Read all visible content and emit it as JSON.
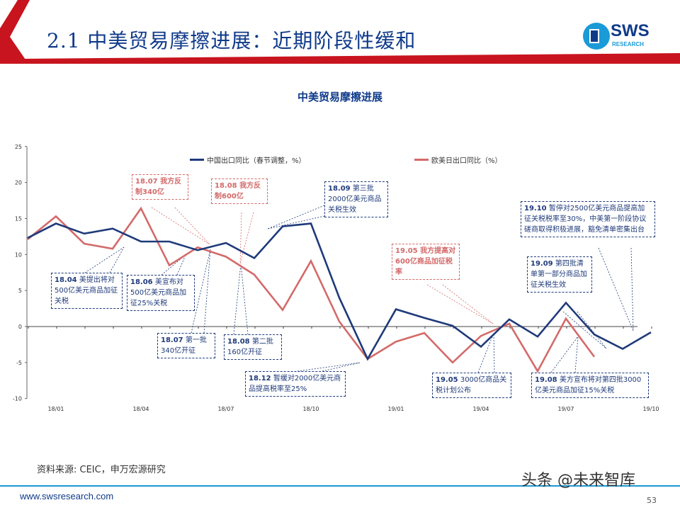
{
  "header": {
    "title": "2.1 中美贸易摩擦进展：近期阶段性缓和",
    "logo_text": "SWS",
    "logo_sub": "RESEARCH"
  },
  "colors": {
    "brand_red": "#c8141e",
    "brand_blue": "#0f3a8a",
    "china_series": "#1f3a7a",
    "west_series": "#d46a6a",
    "footer_line": "#1a9ad6"
  },
  "chart_data": {
    "type": "line",
    "title": "中美贸易摩擦进展",
    "x": [
      "17/12",
      "18/01",
      "18/02",
      "18/03",
      "18/04",
      "18/05",
      "18/06",
      "18/07",
      "18/08",
      "18/09",
      "18/10",
      "18/11",
      "18/12",
      "19/01",
      "19/02",
      "19/03",
      "19/04",
      "19/05",
      "19/06",
      "19/07",
      "19/08",
      "19/09",
      "19/10"
    ],
    "x_tick_labels": [
      "18/01",
      "18/04",
      "18/07",
      "18/10",
      "19/01",
      "19/04",
      "19/07",
      "19/10"
    ],
    "y_tick_labels": [
      "25",
      "20",
      "15",
      "10",
      "5",
      "0",
      "-5",
      "-10"
    ],
    "ylim": [
      -10,
      25
    ],
    "grid": false,
    "legend_position": "top",
    "series": [
      {
        "name": "中国出口同比（春节调整，%）",
        "color": "#1f3a7a",
        "values": [
          12.3,
          14.3,
          12.9,
          13.6,
          11.8,
          11.8,
          10.6,
          11.6,
          9.5,
          13.9,
          14.3,
          4.0,
          -4.5,
          2.4,
          1.2,
          0.1,
          -2.8,
          1.0,
          -1.4,
          3.3,
          -1.1,
          -3.1,
          -0.8
        ]
      },
      {
        "name": "欧美日出口同比（%）",
        "color": "#d46a6a",
        "values": [
          12.1,
          15.3,
          11.5,
          10.8,
          16.4,
          8.5,
          11.0,
          9.7,
          7.2,
          2.3,
          9.1,
          0.7,
          -4.5,
          -2.1,
          -0.9,
          -5.0,
          -1.3,
          0.4,
          -6.2,
          1.1,
          -4.2,
          null,
          null
        ]
      }
    ],
    "annotations": [
      {
        "date": "18.04",
        "text": "美提出将对500亿美元商品加征关税",
        "color": "blue"
      },
      {
        "date": "18.06",
        "text": "美宣布对500亿美元商品加征25%关税",
        "color": "blue"
      },
      {
        "date": "18.07",
        "text": "我方反制340亿",
        "color": "red"
      },
      {
        "date": "18.08",
        "text": "我方反制600亿",
        "color": "red"
      },
      {
        "date": "18.07",
        "text": "第一批340亿开征",
        "color": "blue"
      },
      {
        "date": "18.08",
        "text": "第二批160亿开征",
        "color": "blue"
      },
      {
        "date": "18.09",
        "text": "第三批2000亿美元商品关税生效",
        "color": "blue"
      },
      {
        "date": "18.12",
        "text": "暂缓对2000亿美元商品提高税率至25%",
        "color": "blue"
      },
      {
        "date": "19.05",
        "text": "我方提高对600亿商品加征税率",
        "color": "red"
      },
      {
        "date": "19.05",
        "text": "3000亿商品关税计划公布",
        "color": "blue"
      },
      {
        "date": "19.10",
        "text": "暂停对2500亿美元商品提高加征关税税率至30%，中美第一阶段协议磋商取得积极进展，豁免清单密集出台",
        "color": "blue"
      },
      {
        "date": "19.09",
        "text": "第四批清单第一部分商品加征关税生效",
        "color": "blue"
      },
      {
        "date": "19.08",
        "text": "美方宣布将对第四批3000亿美元商品加征15%关税",
        "color": "blue"
      }
    ]
  },
  "footer": {
    "source": "资料来源: CEIC，申万宏源研究",
    "url": "www.swsresearch.com",
    "page": "53",
    "watermark": "头条 @未来智库"
  }
}
